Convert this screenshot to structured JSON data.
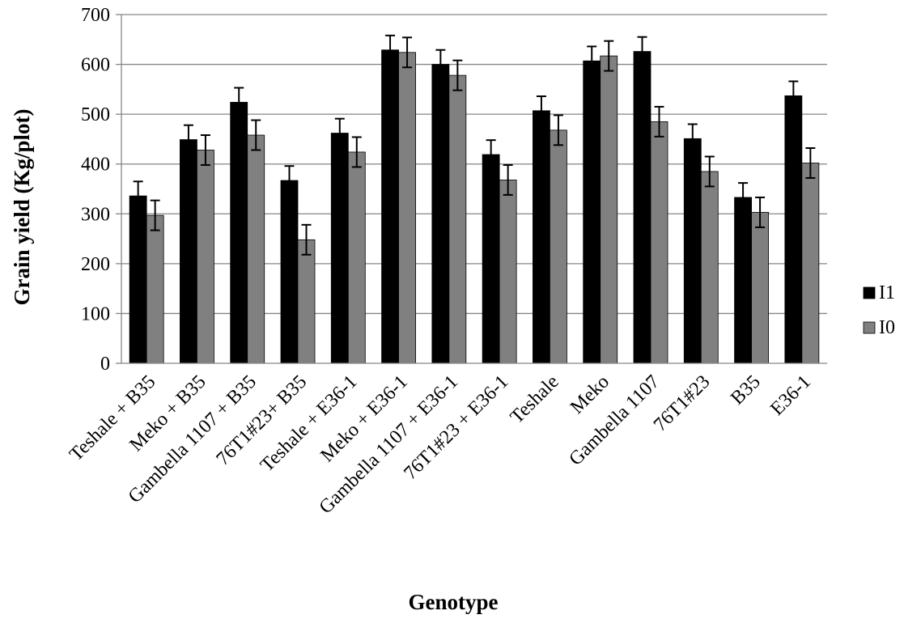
{
  "chart_data": {
    "type": "bar",
    "title": "",
    "xlabel": "Genotype",
    "ylabel": "Grain yield (Kg/plot)",
    "ylim": [
      0,
      700
    ],
    "yticks": [
      0,
      100,
      200,
      300,
      400,
      500,
      600,
      700
    ],
    "grid": true,
    "legend_position": "right",
    "categories": [
      "Teshale + B35",
      "Meko + B35",
      "Gambella 1107 + B35",
      "76T1#23+ B35",
      "Teshale + E36-1",
      "Meko + E36-1",
      "Gambella 1107 + E36-1",
      "76T1#23 + E36-1",
      "Teshale",
      "Meko",
      "Gambella 1107",
      "76T1#23",
      "B35",
      "E36-1"
    ],
    "series": [
      {
        "name": "I1",
        "color": "#000000",
        "values": [
          336,
          449,
          524,
          367,
          462,
          629,
          600,
          419,
          507,
          607,
          626,
          451,
          333,
          537
        ],
        "error": [
          29,
          29,
          29,
          29,
          29,
          29,
          29,
          29,
          29,
          29,
          29,
          29,
          29,
          29
        ]
      },
      {
        "name": "I0",
        "color": "#808080",
        "values": [
          297,
          428,
          458,
          248,
          424,
          624,
          578,
          368,
          468,
          617,
          485,
          385,
          303,
          402
        ],
        "error": [
          30,
          30,
          30,
          30,
          30,
          30,
          30,
          30,
          30,
          30,
          30,
          30,
          30,
          30
        ]
      }
    ]
  }
}
